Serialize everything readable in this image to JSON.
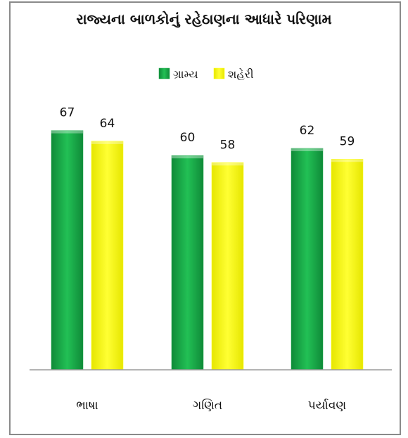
{
  "chart_data": {
    "type": "bar",
    "title": "રાજ્યના બાળકોનું રહેઠાણના આધારે પરિણામ",
    "categories": [
      "ભાષા",
      "ગણિત",
      "પર્યાવણ"
    ],
    "series": [
      {
        "name": "ગ્રામ્ય",
        "values": [
          67,
          60,
          62
        ],
        "color": "#1aa848"
      },
      {
        "name": "શહેરી",
        "values": [
          64,
          58,
          59
        ],
        "color": "#ffff00"
      }
    ],
    "legend": "top-center",
    "grid": false
  }
}
